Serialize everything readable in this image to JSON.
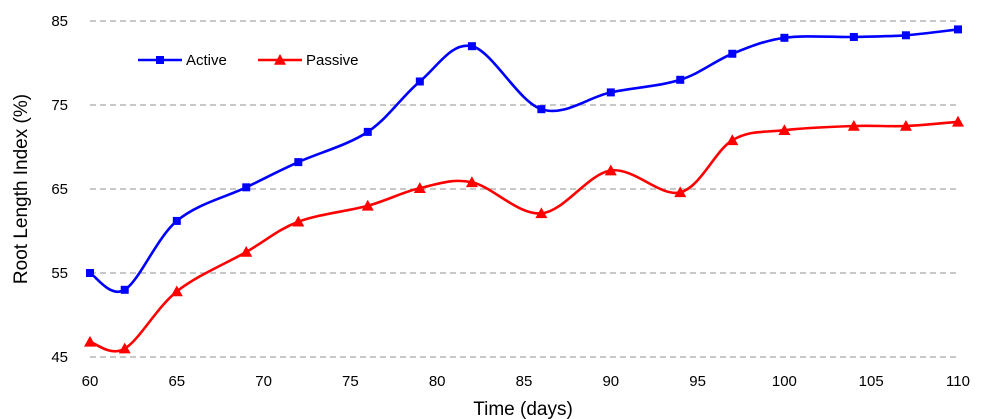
{
  "chart_data": {
    "type": "line",
    "title": "",
    "xlabel": "Time (days)",
    "ylabel": "Root Length Index (%)",
    "xlim": [
      60,
      110
    ],
    "ylim": [
      45,
      85
    ],
    "xticks": [
      60,
      65,
      70,
      75,
      80,
      85,
      90,
      95,
      100,
      105,
      110
    ],
    "yticks": [
      45,
      55,
      65,
      75,
      85
    ],
    "grid": "horizontal dashed",
    "legend_position": "top-left",
    "series": [
      {
        "name": "Active",
        "color": "#0000ff",
        "marker": "square",
        "x": [
          60,
          62,
          65,
          69,
          72,
          76,
          79,
          82,
          86,
          90,
          94,
          97,
          100,
          104,
          107,
          110
        ],
        "y": [
          55.0,
          53.0,
          61.2,
          65.2,
          68.2,
          71.8,
          77.8,
          82.0,
          74.5,
          76.5,
          78.0,
          81.1,
          83.0,
          83.1,
          83.3,
          84.0
        ]
      },
      {
        "name": "Passive",
        "color": "#ff0000",
        "marker": "triangle",
        "x": [
          60,
          62,
          65,
          69,
          72,
          76,
          79,
          82,
          86,
          90,
          94,
          97,
          100,
          104,
          107,
          110
        ],
        "y": [
          46.8,
          46.0,
          52.8,
          57.5,
          61.1,
          63.0,
          65.1,
          65.8,
          62.1,
          67.2,
          64.6,
          70.8,
          72.0,
          72.5,
          72.5,
          73.0
        ]
      }
    ]
  }
}
